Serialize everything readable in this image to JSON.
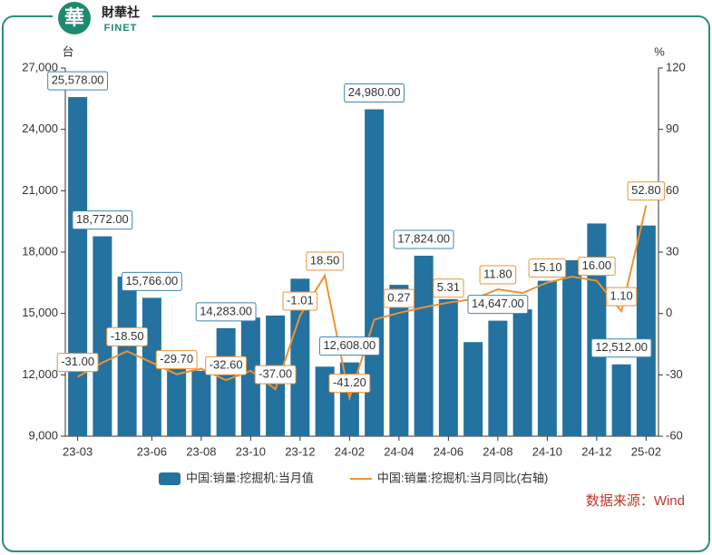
{
  "brand": {
    "logo": "華",
    "name": "財華社",
    "latin": "FINET"
  },
  "chart_data": {
    "type": "bar-line",
    "y_unit": "台",
    "y2_unit": "%",
    "categories": [
      "23-03",
      null,
      null,
      "23-06",
      null,
      "23-08",
      null,
      "23-10",
      null,
      "23-12",
      null,
      "24-02",
      null,
      "24-04",
      null,
      "24-06",
      null,
      "24-08",
      null,
      "24-10",
      null,
      "24-12",
      null,
      "25-02"
    ],
    "series": [
      {
        "name": "中国:销量:挖掘机:当月值",
        "type": "bar",
        "color": "#23729f",
        "values": [
          25578,
          18772,
          16800,
          15766,
          12600,
          12200,
          14283,
          14800,
          14900,
          16700,
          12400,
          12608,
          24980,
          16400,
          17824,
          15700,
          13600,
          14647,
          15200,
          16600,
          17600,
          19400,
          12512,
          19300
        ],
        "value_labels": [
          "25,578.00",
          "18,772.00",
          null,
          "15,766.00",
          null,
          null,
          "14,283.00",
          null,
          null,
          null,
          null,
          "12,608.00",
          "24,980.00",
          null,
          "17,824.00",
          null,
          null,
          "14,647.00",
          null,
          null,
          null,
          null,
          "12,512.00",
          null
        ]
      },
      {
        "name": "中国:销量:挖掘机:当月同比(右轴)",
        "type": "line",
        "axis": "y2",
        "color": "#ee9233",
        "values": [
          -31.0,
          -24,
          -18.5,
          -24,
          -29.7,
          -27,
          -32.6,
          -28,
          -37.0,
          -1.01,
          18.5,
          -41.2,
          -3,
          0.27,
          3,
          5.31,
          7,
          11.8,
          10,
          15.1,
          18,
          16.0,
          1.1,
          52.8
        ],
        "value_labels": [
          "-31.00",
          null,
          "-18.50",
          null,
          "-29.70",
          null,
          "-32.60",
          null,
          "-37.00",
          "-1.01",
          "18.50",
          "-41.20",
          null,
          "0.27",
          null,
          "5.31",
          null,
          "11.80",
          null,
          "15.10",
          null,
          "16.00",
          "1.10",
          "52.80"
        ]
      }
    ],
    "ylim": [
      9000,
      27000
    ],
    "yticks": [
      {
        "value": 9000,
        "label": "9,000"
      },
      {
        "value": 12000,
        "label": "12,000"
      },
      {
        "value": 15000,
        "label": "15,000"
      },
      {
        "value": 18000,
        "label": "18,000"
      },
      {
        "value": 21000,
        "label": "21,000"
      },
      {
        "value": 24000,
        "label": "24,000"
      },
      {
        "value": 27000,
        "label": "27,000"
      }
    ],
    "y2lim": [
      -60,
      120
    ],
    "y2ticks": [
      -60,
      -30,
      0,
      30,
      60,
      90,
      120
    ],
    "legend": "bottom",
    "source": "数据来源：Wind"
  }
}
